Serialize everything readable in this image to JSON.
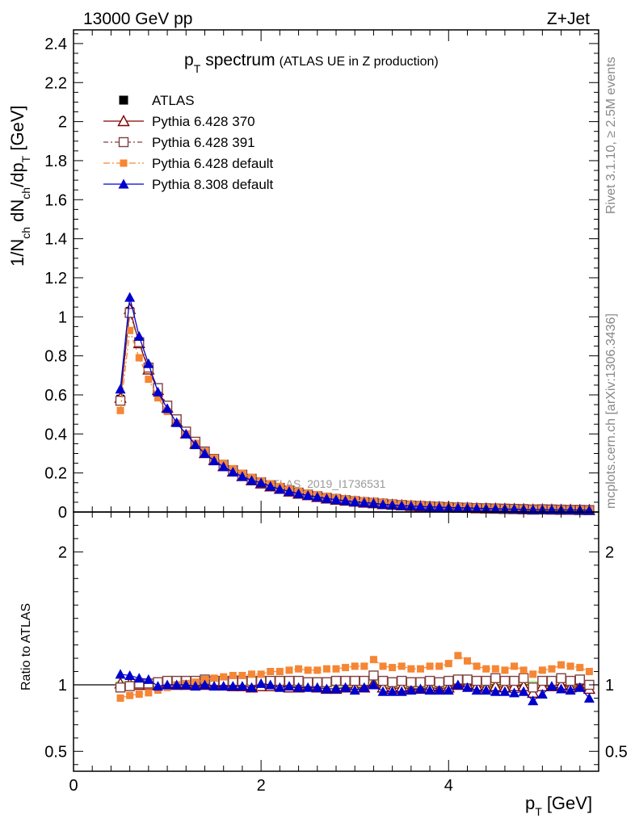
{
  "header": {
    "left": "13000 GeV pp",
    "right": "Z+Jet"
  },
  "side_labels": {
    "rivet": "Rivet 3.1.10, ≥ 2.5M events",
    "mcplots": "mcplots.cern.ch [arXiv:1306.3436]"
  },
  "watermark": "ATLAS_2019_I1736531",
  "chart_data": [
    {
      "type": "line",
      "title_main": "p",
      "title_sub": "T",
      "title_word": "spectrum",
      "title_paren": "(ATLAS UE in Z production)",
      "ylabel_parts": [
        "1/N",
        "ch",
        " dN",
        "ch",
        "/dp",
        "T",
        " [GeV]"
      ],
      "xlim": [
        0,
        5.6
      ],
      "ylim": [
        0,
        2.47
      ],
      "yticks": [
        0,
        0.2,
        0.4,
        0.6,
        0.8,
        1,
        1.2,
        1.4,
        1.6,
        1.8,
        2,
        2.2,
        2.4
      ],
      "ytick_labels": [
        "0",
        "0.2",
        "0.4",
        "0.6",
        "0.8",
        "1",
        "1.2",
        "1.4",
        "1.6",
        "1.8",
        "2",
        "2.2",
        "2.4"
      ],
      "legend_position": "top-left",
      "x": [
        0.5,
        0.6,
        0.7,
        0.8,
        0.9,
        1.0,
        1.1,
        1.2,
        1.3,
        1.4,
        1.5,
        1.6,
        1.7,
        1.8,
        1.9,
        2.0,
        2.1,
        2.2,
        2.3,
        2.4,
        2.5,
        2.6,
        2.7,
        2.8,
        2.9,
        3.0,
        3.1,
        3.2,
        3.3,
        3.4,
        3.5,
        3.6,
        3.7,
        3.8,
        3.9,
        4.0,
        4.1,
        4.2,
        4.3,
        4.4,
        4.5,
        4.6,
        4.7,
        4.8,
        4.9,
        5.0,
        5.1,
        5.2,
        5.3,
        5.4,
        5.5
      ],
      "series": [
        {
          "name": "ATLAS",
          "style": "data",
          "color": "#000000",
          "values": [
            0.58,
            1.03,
            0.86,
            0.73,
            0.62,
            0.53,
            0.46,
            0.4,
            0.35,
            0.3,
            0.265,
            0.235,
            0.208,
            0.185,
            0.165,
            0.148,
            0.132,
            0.119,
            0.107,
            0.096,
            0.087,
            0.079,
            0.071,
            0.065,
            0.059,
            0.054,
            0.049,
            0.045,
            0.041,
            0.038,
            0.035,
            0.032,
            0.03,
            0.028,
            0.026,
            0.024,
            0.022,
            0.021,
            0.019,
            0.018,
            0.017,
            0.016,
            0.015,
            0.014,
            0.013,
            0.013,
            0.012,
            0.011,
            0.011,
            0.01,
            0.01
          ]
        },
        {
          "name": "Pythia 6.428 370",
          "style": "open-triangle",
          "color": "#800000",
          "values": [
            0.585,
            1.04,
            0.865,
            0.73,
            0.625,
            0.535,
            0.463,
            0.402,
            0.35,
            0.302,
            0.266,
            0.235,
            0.207,
            0.184,
            0.162,
            0.146,
            0.131,
            0.119,
            0.105,
            0.094,
            0.086,
            0.077,
            0.069,
            0.063,
            0.058,
            0.053,
            0.048,
            0.045,
            0.04,
            0.037,
            0.034,
            0.031,
            0.029,
            0.027,
            0.025,
            0.023,
            0.022,
            0.021,
            0.019,
            0.018,
            0.017,
            0.016,
            0.015,
            0.014,
            0.012,
            0.013,
            0.012,
            0.011,
            0.011,
            0.01,
            0.01
          ]
        },
        {
          "name": "Pythia 6.428 391",
          "style": "open-square",
          "color": "#804040",
          "values": [
            0.57,
            1.02,
            0.87,
            0.74,
            0.635,
            0.545,
            0.475,
            0.412,
            0.36,
            0.31,
            0.272,
            0.242,
            0.214,
            0.191,
            0.17,
            0.152,
            0.136,
            0.123,
            0.11,
            0.099,
            0.089,
            0.081,
            0.073,
            0.067,
            0.061,
            0.056,
            0.051,
            0.048,
            0.043,
            0.039,
            0.036,
            0.033,
            0.031,
            0.029,
            0.027,
            0.025,
            0.023,
            0.022,
            0.02,
            0.019,
            0.018,
            0.017,
            0.016,
            0.015,
            0.013,
            0.014,
            0.013,
            0.012,
            0.011,
            0.011,
            0.01
          ]
        },
        {
          "name": "Pythia 6.428 default",
          "style": "filled-square-dashdot",
          "color": "#f58634",
          "values": [
            0.52,
            0.93,
            0.79,
            0.68,
            0.585,
            0.515,
            0.455,
            0.4,
            0.352,
            0.31,
            0.276,
            0.248,
            0.222,
            0.198,
            0.178,
            0.16,
            0.145,
            0.131,
            0.118,
            0.107,
            0.097,
            0.088,
            0.08,
            0.073,
            0.067,
            0.062,
            0.057,
            0.054,
            0.048,
            0.044,
            0.041,
            0.038,
            0.035,
            0.033,
            0.031,
            0.029,
            0.027,
            0.026,
            0.024,
            0.022,
            0.021,
            0.019,
            0.018,
            0.017,
            0.015,
            0.015,
            0.014,
            0.013,
            0.013,
            0.012,
            0.012
          ]
        },
        {
          "name": "Pythia 8.308 default",
          "style": "filled-triangle",
          "color": "#0000cc",
          "values": [
            0.63,
            1.1,
            0.9,
            0.76,
            0.615,
            0.53,
            0.458,
            0.4,
            0.345,
            0.3,
            0.262,
            0.232,
            0.205,
            0.182,
            0.162,
            0.15,
            0.132,
            0.117,
            0.106,
            0.094,
            0.085,
            0.077,
            0.069,
            0.063,
            0.058,
            0.052,
            0.048,
            0.045,
            0.039,
            0.036,
            0.033,
            0.031,
            0.029,
            0.027,
            0.025,
            0.023,
            0.022,
            0.021,
            0.019,
            0.018,
            0.017,
            0.016,
            0.015,
            0.014,
            0.012,
            0.012,
            0.012,
            0.011,
            0.011,
            0.01,
            0.009
          ]
        }
      ]
    },
    {
      "type": "line",
      "ylabel": "Ratio to ATLAS",
      "xlabel_main": "p",
      "xlabel_sub": "T",
      "xlabel_unit": "[GeV]",
      "xlim": [
        0,
        5.6
      ],
      "ylim": [
        0.35,
        2.3
      ],
      "xticks": [
        0,
        2,
        4
      ],
      "xtick_labels": [
        "0",
        "2",
        "4"
      ],
      "yticks": [
        0.5,
        1,
        2
      ],
      "ytick_labels": [
        "0.5",
        "1",
        "2"
      ],
      "x": [
        0.5,
        0.6,
        0.7,
        0.8,
        0.9,
        1.0,
        1.1,
        1.2,
        1.3,
        1.4,
        1.5,
        1.6,
        1.7,
        1.8,
        1.9,
        2.0,
        2.1,
        2.2,
        2.3,
        2.4,
        2.5,
        2.6,
        2.7,
        2.8,
        2.9,
        3.0,
        3.1,
        3.2,
        3.3,
        3.4,
        3.5,
        3.6,
        3.7,
        3.8,
        3.9,
        4.0,
        4.1,
        4.2,
        4.3,
        4.4,
        4.5,
        4.6,
        4.7,
        4.8,
        4.9,
        5.0,
        5.1,
        5.2,
        5.3,
        5.4,
        5.5
      ],
      "band_inner_color": "#ffff99",
      "band_outer_color": "#aaff88",
      "band_half_width": [
        0.03,
        0.03,
        0.03,
        0.02,
        0.02,
        0.02,
        0.02,
        0.02,
        0.02,
        0.02,
        0.02,
        0.02,
        0.02,
        0.02,
        0.02,
        0.02,
        0.02,
        0.02,
        0.02,
        0.02,
        0.02,
        0.02,
        0.02,
        0.02,
        0.02,
        0.02,
        0.02,
        0.03,
        0.03,
        0.03,
        0.03,
        0.03,
        0.03,
        0.03,
        0.03,
        0.03,
        0.03,
        0.03,
        0.03,
        0.03,
        0.03,
        0.03,
        0.03,
        0.03,
        0.03,
        0.03,
        0.03,
        0.03,
        0.03,
        0.03,
        0.03
      ],
      "series": [
        {
          "name": "Pythia 6.428 370",
          "style": "open-triangle",
          "color": "#800000",
          "values": [
            1.01,
            1.01,
            1.0,
            1.0,
            1.01,
            1.01,
            1.0,
            1.0,
            1.0,
            1.0,
            1.0,
            1.0,
            0.99,
            0.99,
            0.98,
            0.99,
            0.99,
            1.0,
            0.98,
            0.98,
            0.99,
            0.98,
            0.97,
            0.97,
            0.98,
            0.98,
            0.98,
            1.01,
            0.98,
            0.97,
            0.98,
            0.97,
            0.97,
            0.98,
            0.97,
            0.98,
            1.0,
            1.0,
            0.99,
            0.98,
            0.99,
            0.98,
            0.99,
            0.99,
            0.94,
            0.99,
            0.99,
            1.0,
            0.98,
            0.99,
            0.97
          ]
        },
        {
          "name": "Pythia 6.428 391",
          "style": "open-square",
          "color": "#804040",
          "values": [
            0.98,
            0.99,
            1.01,
            1.01,
            1.02,
            1.03,
            1.03,
            1.03,
            1.03,
            1.04,
            1.03,
            1.03,
            1.03,
            1.03,
            1.03,
            1.03,
            1.03,
            1.03,
            1.03,
            1.03,
            1.02,
            1.02,
            1.02,
            1.03,
            1.03,
            1.03,
            1.03,
            1.07,
            1.03,
            1.02,
            1.03,
            1.02,
            1.02,
            1.03,
            1.02,
            1.03,
            1.04,
            1.04,
            1.03,
            1.03,
            1.05,
            1.03,
            1.03,
            1.05,
            0.98,
            1.03,
            1.03,
            1.05,
            1.03,
            1.04,
            1.0
          ]
        },
        {
          "name": "Pythia 6.428 default",
          "style": "filled-square-dashdot",
          "color": "#f58634",
          "values": [
            0.9,
            0.92,
            0.93,
            0.94,
            0.96,
            0.98,
            1.0,
            1.01,
            1.02,
            1.04,
            1.05,
            1.06,
            1.07,
            1.07,
            1.08,
            1.08,
            1.1,
            1.1,
            1.11,
            1.12,
            1.11,
            1.11,
            1.12,
            1.12,
            1.13,
            1.14,
            1.14,
            1.19,
            1.14,
            1.13,
            1.14,
            1.12,
            1.12,
            1.14,
            1.14,
            1.16,
            1.22,
            1.18,
            1.14,
            1.12,
            1.12,
            1.11,
            1.14,
            1.11,
            1.08,
            1.11,
            1.12,
            1.15,
            1.14,
            1.13,
            1.1
          ]
        },
        {
          "name": "Pythia 8.308 default",
          "style": "filled-triangle",
          "color": "#0000cc",
          "values": [
            1.08,
            1.07,
            1.05,
            1.04,
            0.99,
            1.0,
            1.0,
            1.0,
            0.99,
            1.0,
            0.99,
            0.99,
            0.99,
            0.99,
            0.98,
            1.01,
            1.0,
            0.98,
            0.99,
            0.98,
            0.98,
            0.98,
            0.97,
            0.97,
            0.98,
            0.96,
            0.98,
            1.0,
            0.95,
            0.95,
            0.95,
            0.96,
            0.97,
            0.96,
            0.96,
            0.96,
            1.0,
            0.98,
            0.96,
            0.96,
            0.95,
            0.95,
            0.94,
            0.95,
            0.88,
            0.93,
            0.99,
            0.97,
            0.96,
            0.98,
            0.9
          ]
        }
      ]
    }
  ]
}
